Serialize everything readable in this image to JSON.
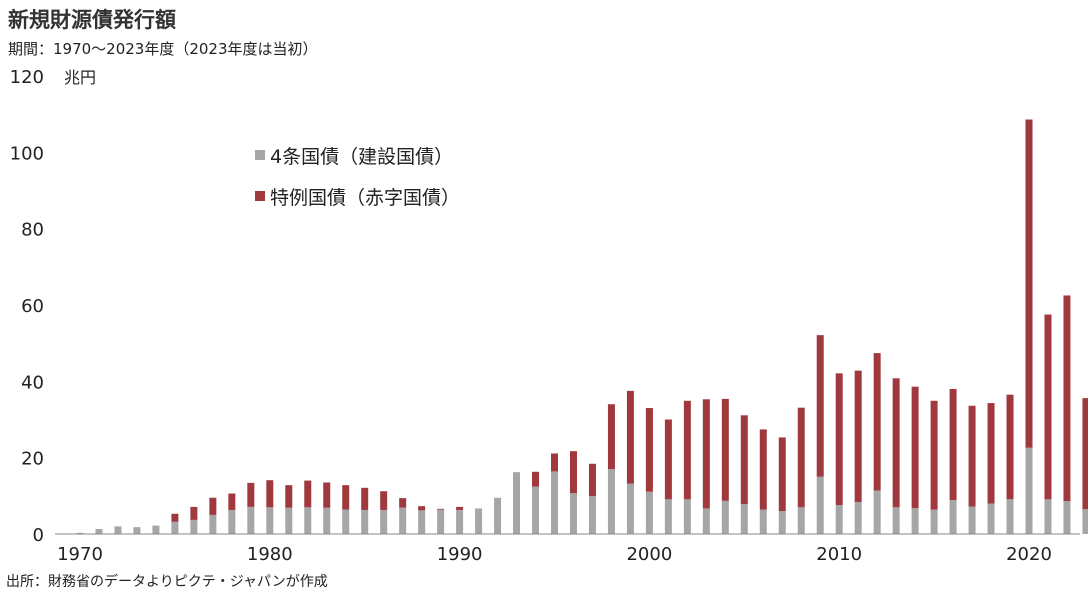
{
  "title": "新規財源債発行額",
  "subtitle": "期間：1970～2023年度（2023年度は当初）",
  "source": "出所：財務省のデータよりピクテ・ジャパンが作成",
  "chart_data": {
    "type": "bar",
    "stacked": true,
    "ylabel": "兆円",
    "ylim": [
      0,
      120
    ],
    "yticks": [
      0,
      20,
      40,
      60,
      80,
      100,
      120
    ],
    "xticks": [
      1970,
      1980,
      1990,
      2000,
      2010,
      2020
    ],
    "grid": false,
    "legend_position": "upper-left",
    "x": [
      1970,
      1971,
      1972,
      1973,
      1974,
      1975,
      1976,
      1977,
      1978,
      1979,
      1980,
      1981,
      1982,
      1983,
      1984,
      1985,
      1986,
      1987,
      1988,
      1989,
      1990,
      1991,
      1992,
      1993,
      1994,
      1995,
      1996,
      1997,
      1998,
      1999,
      2000,
      2001,
      2002,
      2003,
      2004,
      2005,
      2006,
      2007,
      2008,
      2009,
      2010,
      2011,
      2012,
      2013,
      2014,
      2015,
      2016,
      2017,
      2018,
      2019,
      2020,
      2021,
      2022,
      2023
    ],
    "series": [
      {
        "name": "4条国債（建設国債）",
        "color": "#a6a6a6",
        "values": [
          0.3,
          1.3,
          2.0,
          1.8,
          2.2,
          3.2,
          3.7,
          5.0,
          6.3,
          7.1,
          7.0,
          6.9,
          7.0,
          6.9,
          6.4,
          6.3,
          6.3,
          6.9,
          6.2,
          6.4,
          6.3,
          6.7,
          9.5,
          16.2,
          12.4,
          16.4,
          10.7,
          9.9,
          17.0,
          13.2,
          11.1,
          9.1,
          9.1,
          6.7,
          8.7,
          7.8,
          6.4,
          6.0,
          7.0,
          15.0,
          7.6,
          8.4,
          11.4,
          7.0,
          6.8,
          6.4,
          8.9,
          7.2,
          8.0,
          9.1,
          22.6,
          9.1,
          8.6,
          6.5
        ]
      },
      {
        "name": "特例国債（赤字国債）",
        "color": "#a0393e",
        "values": [
          0,
          0,
          0,
          0,
          0,
          2.1,
          3.4,
          4.5,
          4.3,
          6.3,
          7.1,
          5.9,
          7.0,
          6.6,
          6.4,
          5.8,
          4.9,
          2.5,
          1.1,
          0.2,
          0.8,
          0,
          0,
          0,
          3.9,
          4.7,
          11.0,
          8.5,
          17.0,
          24.3,
          21.9,
          20.9,
          25.8,
          28.6,
          26.7,
          23.3,
          21.0,
          19.3,
          26.1,
          37.1,
          34.5,
          34.4,
          36.0,
          33.8,
          31.8,
          28.5,
          29.1,
          26.4,
          26.3,
          27.4,
          86.0,
          48.4,
          53.9,
          29.1
        ]
      }
    ]
  }
}
